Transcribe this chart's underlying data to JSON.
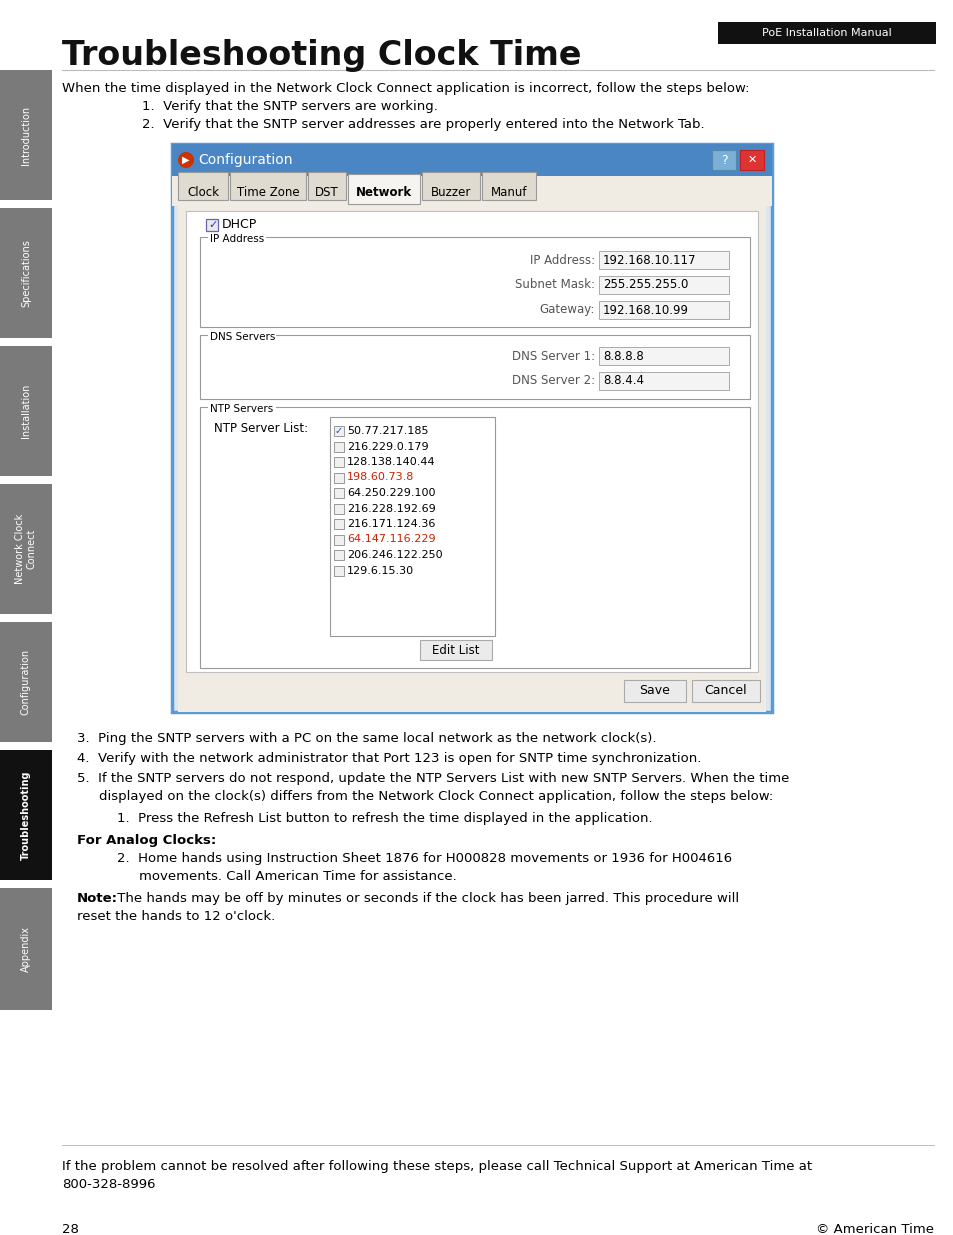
{
  "title": "Troubleshooting Clock Time",
  "badge_text": "PoE Installation Manual",
  "intro_text": "When the time displayed in the Network Clock Connect application is incorrect, follow the steps below:",
  "step1": "Verify that the SNTP servers are working.",
  "step2": "Verify that the SNTP server addresses are properly entered into the Network Tab.",
  "step3": "Ping the SNTP servers with a PC on the same local network as the network clock(s).",
  "step4": "Verify with the network administrator that Port 123 is open for SNTP time synchronization.",
  "step5a": "If the SNTP servers do not respond, update the NTP Servers List with new SNTP Servers. When the time",
  "step5b": "displayed on the clock(s) differs from the Network Clock Connect application, follow the steps below:",
  "substep1": "Press the Refresh List button to refresh the time displayed in the application.",
  "analog_header": "For Analog Clocks:",
  "analog_step2a": "Home hands using Instruction Sheet 1876 for H000828 movements or 1936 for H004616",
  "analog_step2b": "movements. Call American Time for assistance.",
  "note_bold": "Note:",
  "note_text": " The hands may be off by minutes or seconds if the clock has been jarred. This procedure will",
  "note_text2": "reset the hands to 12 o'clock.",
  "footer_text": "If the problem cannot be resolved after following these steps, please call Technical Support at American Time at",
  "footer_text2": "800-328-8996",
  "page_num": "28",
  "copyright": "© American Time",
  "sidebar_labels": [
    "Introduction",
    "Specifications",
    "Installation",
    "Network Clock\nConnect",
    "Configuration",
    "Troubleshooting",
    "Appendix"
  ],
  "sidebar_colors": [
    "#7a7a7a",
    "#7a7a7a",
    "#7a7a7a",
    "#7a7a7a",
    "#7a7a7a",
    "#111111",
    "#7a7a7a"
  ],
  "bg_color": "#ffffff",
  "title_color": "#111111",
  "badge_bg": "#111111",
  "badge_fg": "#ffffff",
  "dialog_title": "Configuration",
  "dialog_tabs": [
    "Clock",
    "Time Zone",
    "DST",
    "Network",
    "Buzzer",
    "Manuf"
  ],
  "active_tab_idx": 3,
  "ip_address": "192.168.10.117",
  "subnet_mask": "255.255.255.0",
  "gateway": "192.168.10.99",
  "dns1": "8.8.8.8",
  "dns2": "8.8.4.4",
  "ntp_servers": [
    "50.77.217.185",
    "216.229.0.179",
    "128.138.140.44",
    "198.60.73.8",
    "64.250.229.100",
    "216.228.192.69",
    "216.171.124.36",
    "64.147.116.229",
    "206.246.122.250",
    "129.6.15.30"
  ],
  "ntp_checked": [
    true,
    false,
    false,
    false,
    false,
    false,
    false,
    false,
    false,
    false
  ],
  "ntp_red": [
    false,
    false,
    false,
    true,
    false,
    false,
    false,
    true,
    false,
    false
  ]
}
